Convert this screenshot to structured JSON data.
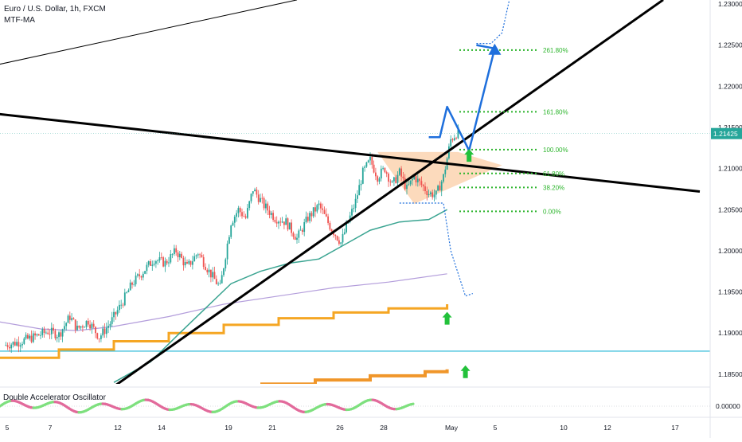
{
  "header": {
    "symbol_line": "Euro / U.S. Dollar, 1h, FXCM",
    "indicator": "MTF-MA"
  },
  "oscillator": {
    "title": "Double Accelerator Oscillator",
    "zero_label": "0.00000"
  },
  "colors": {
    "up": "#26a69a",
    "down": "#ef5350",
    "teal_ma": "#3aa491",
    "purple_ma": "#b39ddb",
    "orange": "#f5a623",
    "orange_dark": "#f0962a",
    "cyan": "#1eb4d6",
    "blue": "#1e6fdc",
    "fib": "#2db52d",
    "triangle": "#fbd3b0",
    "price_badge": "#26a69a"
  },
  "chart_data": {
    "type": "candlestick",
    "symbol": "Euro / U.S. Dollar",
    "timeframe": "1h",
    "ylim": [
      1.1835,
      1.2305
    ],
    "y_ticks": [
      "1.23000",
      "1.22500",
      "1.22000",
      "1.21500",
      "1.21000",
      "1.20500",
      "1.20000",
      "1.19500",
      "1.19000",
      "1.18500"
    ],
    "x_ticks": [
      "5",
      "7",
      "12",
      "14",
      "19",
      "21",
      "26",
      "28",
      "May",
      "5",
      "10",
      "12",
      "17"
    ],
    "last_price": "1.21425",
    "close_path": [
      [
        0,
        1.1885
      ],
      [
        4,
        1.1889
      ],
      [
        8,
        1.1895
      ],
      [
        12,
        1.1902
      ],
      [
        15,
        1.1898
      ],
      [
        18,
        1.192
      ],
      [
        20,
        1.1905
      ],
      [
        23,
        1.1915
      ],
      [
        26,
        1.1895
      ],
      [
        29,
        1.1912
      ],
      [
        32,
        1.1935
      ],
      [
        35,
        1.196
      ],
      [
        38,
        1.1975
      ],
      [
        41,
        1.199
      ],
      [
        44,
        1.1985
      ],
      [
        47,
        1.2
      ],
      [
        50,
        1.198
      ],
      [
        53,
        1.1998
      ],
      [
        56,
        1.1975
      ],
      [
        59,
        1.1955
      ],
      [
        62,
        1.2035
      ],
      [
        64,
        1.205
      ],
      [
        66,
        1.204
      ],
      [
        68,
        1.2075
      ],
      [
        71,
        1.2055
      ],
      [
        74,
        1.204
      ],
      [
        77,
        1.2035
      ],
      [
        80,
        1.2015
      ],
      [
        83,
        1.204
      ],
      [
        86,
        1.2055
      ],
      [
        89,
        1.203
      ],
      [
        92,
        1.201
      ],
      [
        94,
        1.2035
      ],
      [
        96,
        1.206
      ],
      [
        98,
        1.2095
      ],
      [
        100,
        1.211
      ],
      [
        102,
        1.209
      ],
      [
        104,
        1.21
      ],
      [
        106,
        1.208
      ],
      [
        108,
        1.2095
      ],
      [
        110,
        1.2075
      ],
      [
        112,
        1.209
      ],
      [
        114,
        1.208
      ],
      [
        116,
        1.207
      ],
      [
        118,
        1.2068
      ],
      [
        120,
        1.209
      ],
      [
        122,
        1.2135
      ],
      [
        124,
        1.2145
      ]
    ],
    "fib_levels": [
      {
        "label": "261.80%",
        "price": 1.2244
      },
      {
        "label": "161.80%",
        "price": 1.2169
      },
      {
        "label": "100.00%",
        "price": 1.2123
      },
      {
        "label": "61.80%",
        "price": 1.2094
      },
      {
        "label": "38.20%",
        "price": 1.2077
      },
      {
        "label": "0.00%",
        "price": 1.2048
      }
    ],
    "horizontal_line": 1.1878,
    "trendlines": [
      {
        "name": "descending",
        "from": [
          -3,
          1.2167
        ],
        "to": [
          190,
          1.2072
        ]
      },
      {
        "name": "ascending",
        "from": [
          30,
          1.1835
        ],
        "to": [
          180,
          1.2305
        ]
      },
      {
        "name": "thin",
        "from": [
          -3,
          1.2225
        ],
        "to": [
          80,
          1.2305
        ]
      }
    ],
    "teal_ma": [
      [
        30,
        1.184
      ],
      [
        40,
        1.1865
      ],
      [
        48,
        1.19
      ],
      [
        55,
        1.193
      ],
      [
        62,
        1.196
      ],
      [
        70,
        1.1975
      ],
      [
        78,
        1.1985
      ],
      [
        86,
        1.199
      ],
      [
        94,
        1.201
      ],
      [
        100,
        1.2025
      ],
      [
        108,
        1.2035
      ],
      [
        116,
        1.2038
      ],
      [
        121,
        1.205
      ]
    ],
    "purple_ma": [
      [
        -3,
        1.1915
      ],
      [
        10,
        1.1905
      ],
      [
        20,
        1.1903
      ],
      [
        30,
        1.1908
      ],
      [
        45,
        1.192
      ],
      [
        60,
        1.1935
      ],
      [
        75,
        1.1945
      ],
      [
        90,
        1.1955
      ],
      [
        105,
        1.1962
      ],
      [
        121,
        1.1972
      ]
    ],
    "orange_step_high": [
      [
        -3,
        1.187
      ],
      [
        15,
        1.188
      ],
      [
        30,
        1.189
      ],
      [
        45,
        1.19
      ],
      [
        60,
        1.191
      ],
      [
        75,
        1.1918
      ],
      [
        90,
        1.1925
      ],
      [
        105,
        1.193
      ],
      [
        121,
        1.1935
      ]
    ],
    "orange_step_low": [
      [
        70,
        1.1838
      ],
      [
        85,
        1.1843
      ],
      [
        100,
        1.1848
      ],
      [
        115,
        1.1853
      ],
      [
        121,
        1.1856
      ]
    ],
    "projection_blue": [
      [
        116,
        1.2138
      ],
      [
        119,
        1.2138
      ],
      [
        121,
        1.2175
      ],
      [
        127,
        1.2122
      ],
      [
        134,
        1.2246
      ],
      [
        129,
        1.225
      ]
    ],
    "projection_dotted_up": [
      [
        129,
        1.2252
      ],
      [
        133,
        1.2252
      ],
      [
        136,
        1.2265
      ],
      [
        138,
        1.2305
      ]
    ],
    "projection_dotted_down": [
      [
        108,
        1.2058
      ],
      [
        120,
        1.2058
      ],
      [
        122,
        1.2
      ],
      [
        126,
        1.1945
      ],
      [
        128,
        1.1948
      ]
    ],
    "arrows": [
      {
        "x": 127,
        "price": 1.2115
      },
      {
        "x": 121,
        "price": 1.1917
      },
      {
        "x": 126,
        "price": 1.1852
      }
    ],
    "triangle": [
      [
        102,
        1.212
      ],
      [
        124,
        1.212
      ],
      [
        136,
        1.2104
      ],
      [
        112,
        1.2057
      ]
    ],
    "oscillator_zero": 0
  }
}
